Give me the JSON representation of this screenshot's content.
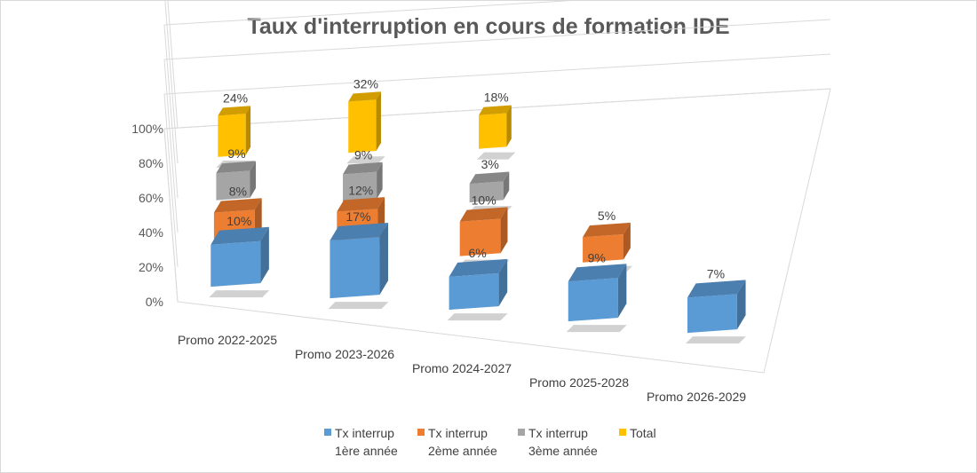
{
  "chart_data": {
    "type": "bar",
    "title": "Taux d'interruption en cours de formation IDE",
    "categories": [
      "Promo 2022-2025",
      "Promo 2023-2026",
      "Promo 2024-2027",
      "Promo 2025-2028",
      "Promo 2026-2029"
    ],
    "series": [
      {
        "name": "Tx interrup 1ère année",
        "legend_lines": [
          "Tx interrup",
          "1ère année"
        ],
        "color": "#5b9bd5",
        "values": [
          10,
          17,
          6,
          9,
          7
        ],
        "labels": [
          "10%",
          "17%",
          "6%",
          "9%",
          "7%"
        ]
      },
      {
        "name": "Tx interrup 2ème année",
        "legend_lines": [
          "Tx interrup",
          "2ème année"
        ],
        "color": "#ed7d31",
        "values": [
          8,
          12,
          10,
          5,
          null
        ],
        "labels": [
          "8%",
          "12%",
          "10%",
          "5%",
          ""
        ]
      },
      {
        "name": "Tx interrup 3ème année",
        "legend_lines": [
          "Tx interrup",
          "3ème année"
        ],
        "color": "#a5a5a5",
        "values": [
          9,
          9,
          3,
          null,
          null
        ],
        "labels": [
          "9%",
          "9%",
          "3%",
          "",
          ""
        ]
      },
      {
        "name": "Total",
        "legend_lines": [
          "Total",
          ""
        ],
        "color": "#ffc000",
        "values": [
          24,
          32,
          18,
          null,
          null
        ],
        "labels": [
          "24%",
          "32%",
          "18%",
          "",
          ""
        ]
      }
    ],
    "y_ticks": [
      "0%",
      "20%",
      "40%",
      "60%",
      "80%",
      "100%"
    ],
    "ylim": [
      0,
      100
    ],
    "grid": true,
    "legend_position": "bottom",
    "chart_style": "3d-column"
  }
}
